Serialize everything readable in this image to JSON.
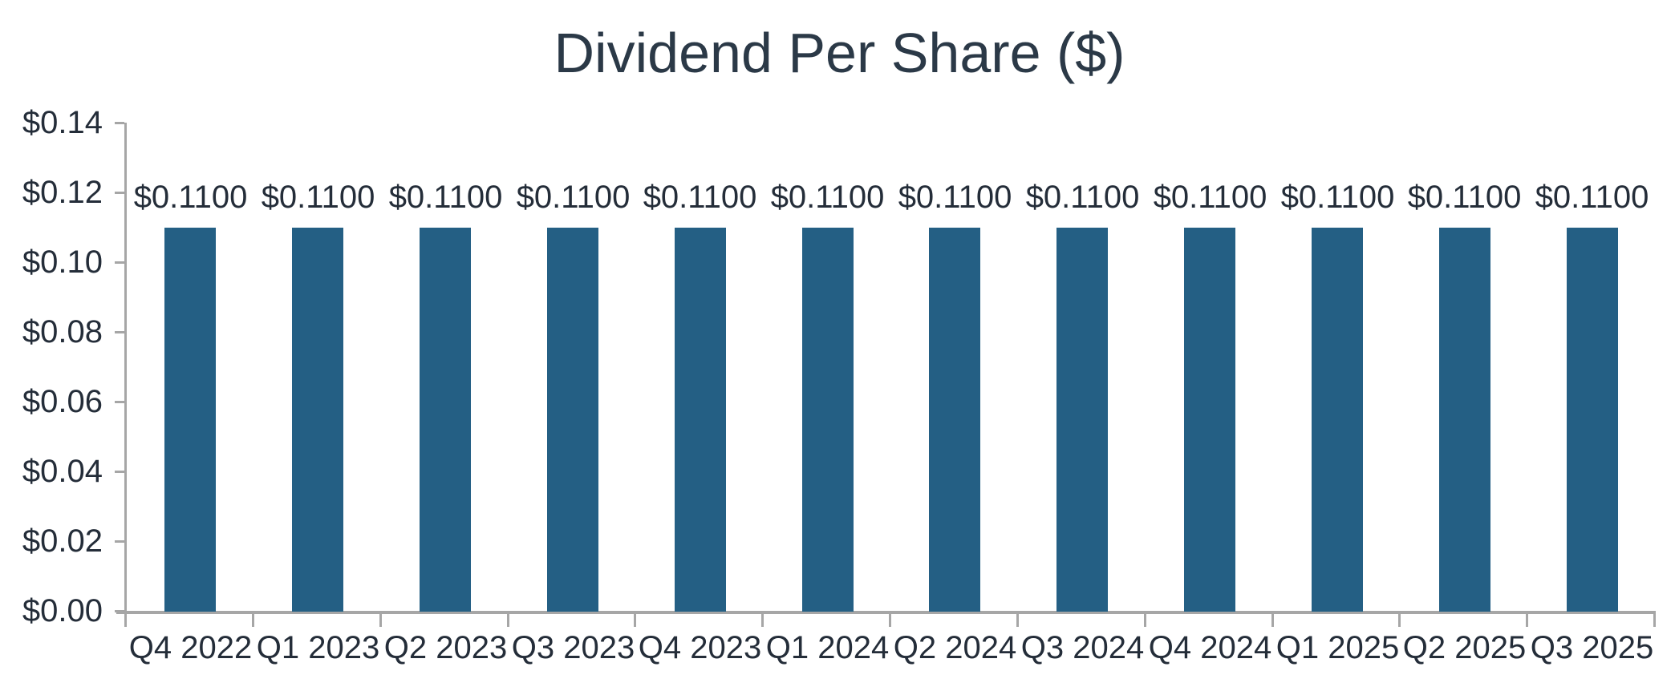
{
  "chart_data": {
    "type": "bar",
    "title": "Dividend Per Share ($)",
    "categories": [
      "Q4 2022",
      "Q1 2023",
      "Q2 2023",
      "Q3 2023",
      "Q4 2023",
      "Q1 2024",
      "Q2 2024",
      "Q3 2024",
      "Q4 2024",
      "Q1 2025",
      "Q2 2025",
      "Q3 2025"
    ],
    "values": [
      0.11,
      0.11,
      0.11,
      0.11,
      0.11,
      0.11,
      0.11,
      0.11,
      0.11,
      0.11,
      0.11,
      0.11
    ],
    "bar_labels": [
      "$0.1100",
      "$0.1100",
      "$0.1100",
      "$0.1100",
      "$0.1100",
      "$0.1100",
      "$0.1100",
      "$0.1100",
      "$0.1100",
      "$0.1100",
      "$0.1100",
      "$0.1100"
    ],
    "xlabel": "",
    "ylabel": "",
    "ylim": [
      0,
      0.14
    ],
    "ytick_step": 0.02,
    "ytick_labels": [
      "$0.00",
      "$0.02",
      "$0.04",
      "$0.06",
      "$0.08",
      "$0.10",
      "$0.12",
      "$0.14"
    ],
    "grid": false,
    "legend": "none",
    "colors": {
      "bar": "#245f84",
      "axis": "#a6a6a6",
      "label_text": "#242d39",
      "title_text": "#2b3947"
    }
  }
}
